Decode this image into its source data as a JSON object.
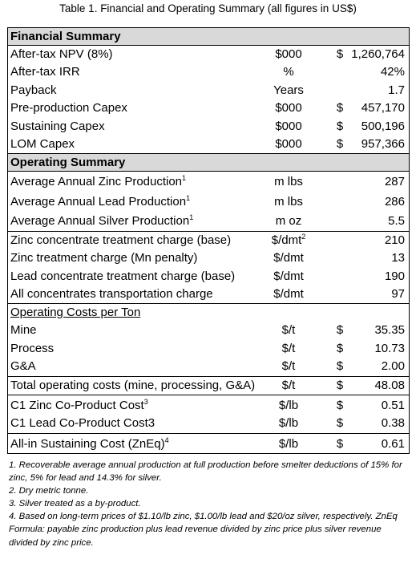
{
  "caption": "Table 1.  Financial and Operating Summary (all figures in US$)",
  "financial": {
    "header": "Financial Summary",
    "rows": [
      {
        "label": "After-tax NPV (8%)",
        "unit": "$000",
        "cur": "$",
        "value": "1,260,764"
      },
      {
        "label": "After-tax IRR",
        "unit": "%",
        "cur": "",
        "value": "42%"
      },
      {
        "label": "Payback",
        "unit": "Years",
        "cur": "",
        "value": "1.7"
      },
      {
        "label": "Pre-production Capex",
        "unit": "$000",
        "cur": "$",
        "value": "457,170"
      },
      {
        "label": "Sustaining Capex",
        "unit": "$000",
        "cur": "$",
        "value": "500,196"
      },
      {
        "label": "LOM Capex",
        "unit": "$000",
        "cur": "$",
        "value": "957,366"
      }
    ]
  },
  "operating": {
    "header": "Operating Summary",
    "production": [
      {
        "label": "Average Annual Zinc Production",
        "sup": "1",
        "unit": "m lbs",
        "value": "287"
      },
      {
        "label": "Average Annual Lead Production",
        "sup": "1",
        "unit": "m lbs",
        "value": "286"
      },
      {
        "label": "Average Annual Silver Production",
        "sup": "1",
        "unit": "m oz",
        "value": "5.5"
      }
    ],
    "charges": [
      {
        "label": "Zinc concentrate treatment charge (base)",
        "unit": "$/dmt",
        "unit_sup": "2",
        "value": "210"
      },
      {
        "label": "Zinc treatment charge (Mn penalty)",
        "unit": "$/dmt",
        "unit_sup": "",
        "value": "13"
      },
      {
        "label": "Lead concentrate treatment charge (base)",
        "unit": "$/dmt",
        "unit_sup": "",
        "value": "190"
      },
      {
        "label": "All concentrates transportation charge",
        "unit": "$/dmt",
        "unit_sup": "",
        "value": "97"
      }
    ],
    "costs_header": "Operating Costs per Ton",
    "costs": [
      {
        "label": "Mine",
        "unit": "$/t",
        "cur": "$",
        "value": "35.35"
      },
      {
        "label": "Process",
        "unit": "$/t",
        "cur": "$",
        "value": "10.73"
      },
      {
        "label": "G&A",
        "unit": "$/t",
        "cur": "$",
        "value": "2.00"
      }
    ],
    "total": {
      "label": "Total operating costs (mine, processing, G&A)",
      "unit": "$/t",
      "cur": "$",
      "value": "48.08"
    },
    "co_product": [
      {
        "label": "C1 Zinc Co-Product Cost",
        "sup": "3",
        "unit": "$/lb",
        "cur": "$",
        "value": "0.51"
      },
      {
        "label": "C1 Lead Co-Product Cost3",
        "sup": "",
        "unit": "$/lb",
        "cur": "$",
        "value": "0.38"
      }
    ],
    "aisc": {
      "label": "All-in Sustaining Cost (ZnEq)",
      "sup": "4",
      "unit": "$/lb",
      "cur": "$",
      "value": "0.61"
    }
  },
  "notes": [
    "1.  Recoverable average annual production at full production before smelter deductions of 15% for zinc, 5% for lead and 14.3% for silver.",
    "2.  Dry metric tonne.",
    "3. Silver treated as a by-product.",
    "4. Based on long-term prices of $1.10/lb zinc, $1.00/lb lead and $20/oz silver, respectively. ZnEq Formula: payable zinc production plus lead revenue divided by zinc price plus silver revenue divided by zinc price."
  ]
}
